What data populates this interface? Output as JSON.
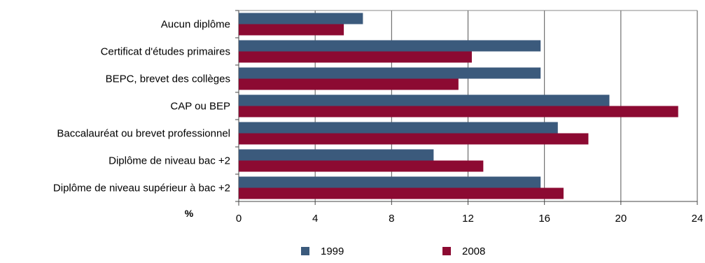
{
  "chart_data": {
    "type": "bar",
    "orientation": "horizontal",
    "categories": [
      "Aucun diplôme",
      "Certificat d'études primaires",
      "BEPC, brevet des collèges",
      "CAP ou BEP",
      "Baccalauréat ou brevet professionnel",
      "Diplôme de niveau bac +2",
      "Diplôme de niveau supérieur à bac +2"
    ],
    "series": [
      {
        "name": "1999",
        "color": "#3b5a7c",
        "values": [
          6.5,
          15.8,
          15.8,
          19.4,
          16.7,
          10.2,
          15.8
        ]
      },
      {
        "name": "2008",
        "color": "#8c0a32",
        "values": [
          5.5,
          12.2,
          11.5,
          23.0,
          18.3,
          12.8,
          17.0
        ]
      }
    ],
    "xunit": "%",
    "xlim": [
      0,
      24
    ],
    "xticks": [
      0,
      4,
      8,
      12,
      16,
      20,
      24
    ],
    "grid": true,
    "legend_position": "bottom"
  }
}
